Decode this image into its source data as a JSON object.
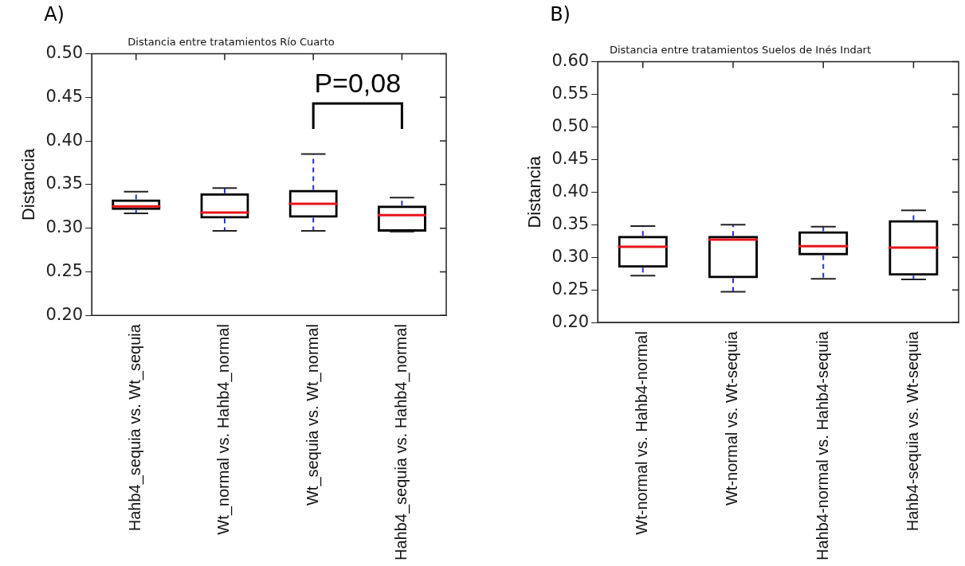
{
  "chart_data": [
    {
      "type": "box",
      "title": "Distancia entre tratamientos Río Cuarto",
      "ylabel": "Distancia",
      "categories": [
        "Hahb4_sequia vs. Wt_sequia",
        "Wt_normal vs. Hahb4_normal",
        "Wt_sequia vs. Wt_normal",
        "Hahb4_sequia vs. Hahb4_normal"
      ],
      "series": [
        {
          "color": "#000000",
          "boxes": [
            {
              "low": 0.317,
              "q1": 0.321,
              "median": 0.325,
              "q3": 0.333,
              "high": 0.342
            },
            {
              "low": 0.297,
              "q1": 0.311,
              "median": 0.318,
              "q3": 0.34,
              "high": 0.346
            },
            {
              "low": 0.297,
              "q1": 0.312,
              "median": 0.328,
              "q3": 0.344,
              "high": 0.385
            },
            {
              "low": 0.296,
              "q1": 0.296,
              "median": 0.315,
              "q3": 0.326,
              "high": 0.335
            }
          ]
        }
      ],
      "ylim": [
        0.2,
        0.5
      ],
      "yticks": [
        {
          "value": 0.2,
          "label": "0.20"
        },
        0.25,
        {
          "value": 0.3,
          "label": "0.30"
        },
        0.35,
        {
          "value": 0.4,
          "label": "0.40"
        },
        0.45,
        {
          "value": 0.5,
          "label": "0.50"
        }
      ],
      "grid": false,
      "annotations": [
        "A)",
        "P=0,08"
      ]
    },
    {
      "type": "box",
      "title": "Distancia entre tratamientos Suelos de Inés Indart",
      "ylabel": "Distancia",
      "categories": [
        "Wt-normal vs. Hahb4-normal",
        "Wt-normal vs. Wt-sequia",
        "Hahb4-normal vs. Hahb4-sequia",
        "Hahb4-sequia vs. Wt-sequia"
      ],
      "series": [
        {
          "color": "#000000",
          "boxes": [
            {
              "low": 0.272,
              "q1": 0.284,
              "median": 0.316,
              "q3": 0.333,
              "high": 0.348
            },
            {
              "low": 0.247,
              "q1": 0.268,
              "median": 0.327,
              "q3": 0.333,
              "high": 0.35
            },
            {
              "low": 0.267,
              "q1": 0.303,
              "median": 0.317,
              "q3": 0.34,
              "high": 0.347
            },
            {
              "low": 0.266,
              "q1": 0.272,
              "median": 0.315,
              "q3": 0.357,
              "high": 0.372
            }
          ]
        }
      ],
      "ylim": [
        0.2,
        0.6
      ],
      "yticks": [
        {
          "value": 0.2,
          "label": "0.20"
        },
        0.25,
        {
          "value": 0.3,
          "label": "0.30"
        },
        0.35,
        {
          "value": 0.4,
          "label": "0.40"
        },
        0.45,
        {
          "value": 0.5,
          "label": "0.50"
        },
        0.55,
        {
          "value": 0.6,
          "label": "0.60"
        }
      ],
      "grid": false,
      "annotations": [
        "B)"
      ]
    }
  ]
}
